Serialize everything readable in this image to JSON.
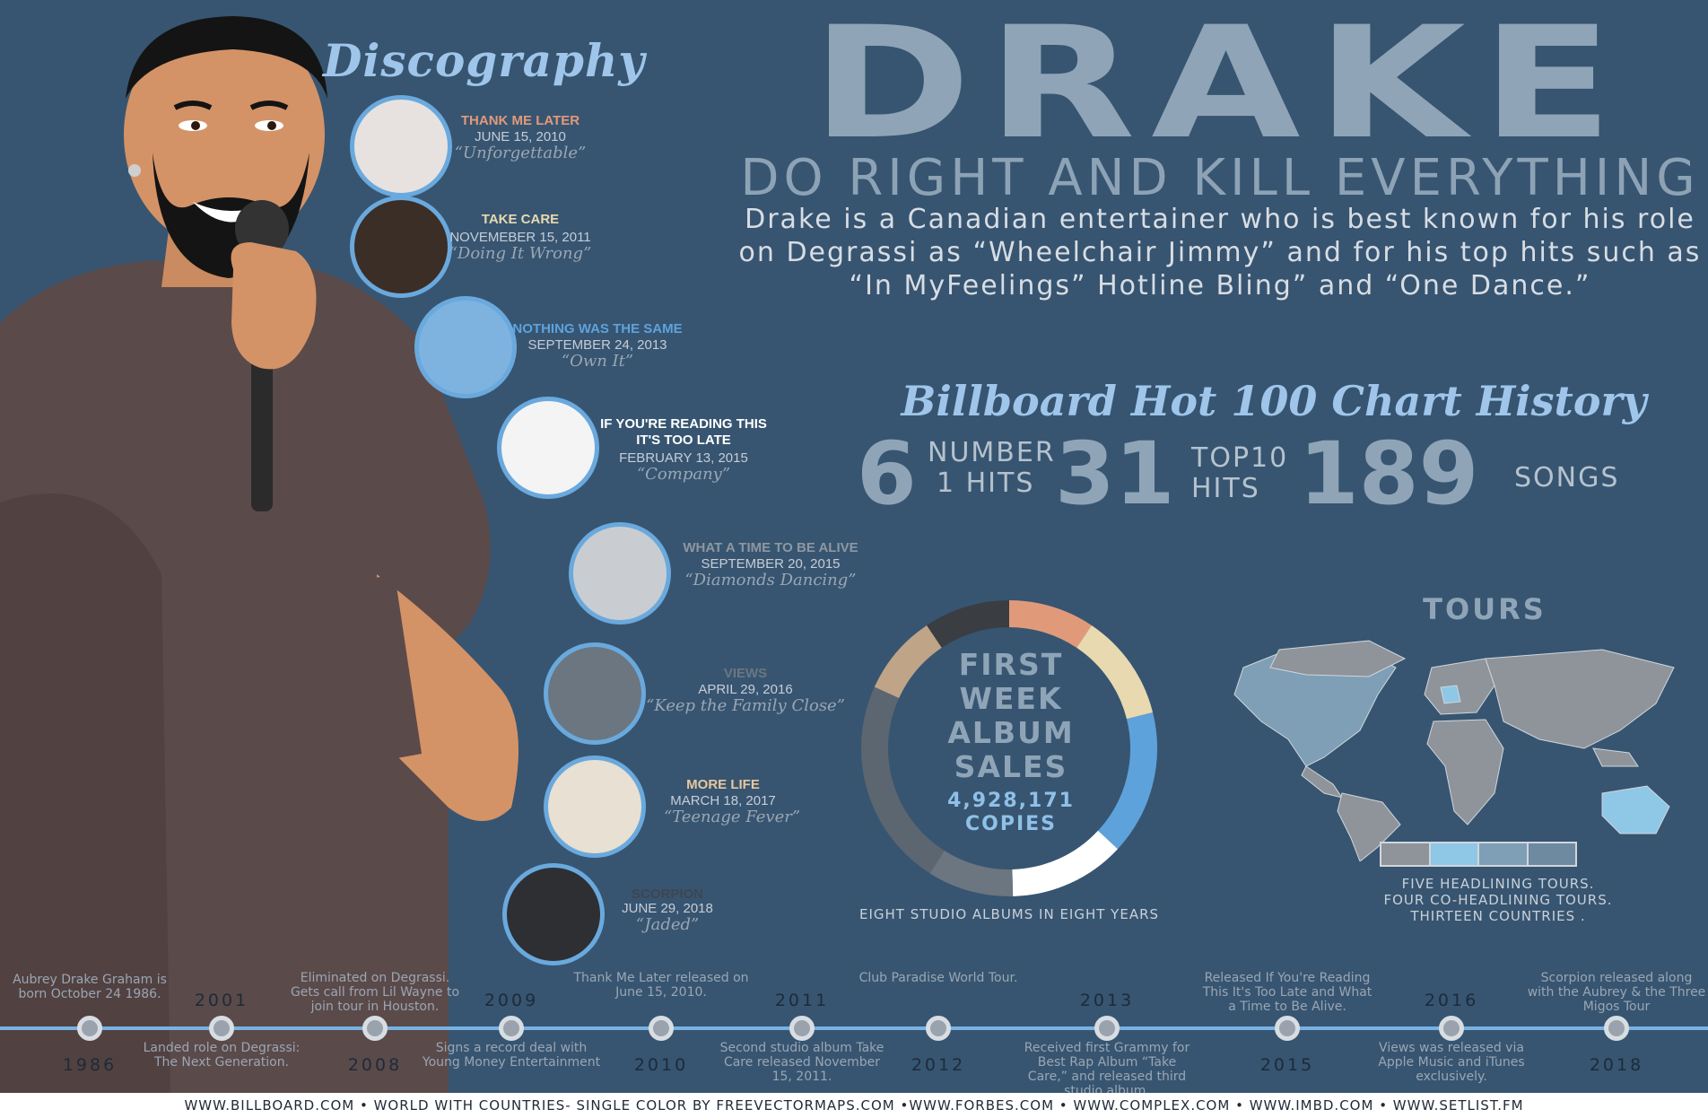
{
  "discography": {
    "title": "Discography",
    "albums": [
      {
        "title": "THANK ME LATER",
        "date": "JUNE 15, 2010",
        "song": "“Unforgettable”",
        "title_color": "#e19a79"
      },
      {
        "title": "TAKE CARE",
        "date": "NOVEMEBER 15, 2011",
        "song": "“Doing It Wrong”",
        "title_color": "#e8d9b0"
      },
      {
        "title": "NOTHING WAS THE SAME",
        "date": "SEPTEMBER 24, 2013",
        "song": "“Own It”",
        "title_color": "#5ea2dc"
      },
      {
        "title": "IF YOU'RE READING THIS IT'S TOO LATE",
        "date": "FEBRUARY 13, 2015",
        "song": "“Company”",
        "title_color": "#ffffff"
      },
      {
        "title": "WHAT A TIME TO BE ALIVE",
        "date": "SEPTEMBER 20, 2015",
        "song": "“Diamonds Dancing”",
        "title_color": "#8e97a1"
      },
      {
        "title": "VIEWS",
        "date": "APRIL 29, 2016",
        "song": "“Keep the Family Close”",
        "title_color": "#6c7680"
      },
      {
        "title": "MORE LIFE",
        "date": "MARCH 18, 2017",
        "song": "“Teenage Fever”",
        "title_color": "#e8c79e"
      },
      {
        "title": "SCORPION",
        "date": "JUNE 29, 2018",
        "song": "“Jaded”",
        "title_color": "#3e4650"
      }
    ]
  },
  "header": {
    "name": "DRAKE",
    "tagline": "DO RIGHT AND KILL EVERYTHING",
    "bio_line1": "Drake is a Canadian entertainer who is best known for his role",
    "bio_line2": "on Degrassi as “Wheelchair Jimmy” and for his top hits such as",
    "bio_line3": "“In MyFeelings” Hotline Bling” and “One Dance.”"
  },
  "billboard": {
    "title": "Billboard Hot 100 Chart History",
    "number_one": {
      "value": "6",
      "label_line1": "NUMBER",
      "label_line2": "1 HITS"
    },
    "top_ten": {
      "value": "31",
      "label_line1": "TOP10",
      "label_line2": "HITS"
    },
    "songs": {
      "value": "189",
      "label": "SONGS"
    }
  },
  "sales": {
    "heading_line1": "FIRST",
    "heading_line2": "WEEK",
    "heading_line3": "ALBUM",
    "heading_line4": "SALES",
    "total": "4,928,171",
    "unit": "COPIES",
    "caption": "EIGHT STUDIO ALBUMS IN EIGHT YEARS",
    "ring_segments": [
      {
        "share": 0.094,
        "color": "#e19a79"
      },
      {
        "share": 0.117,
        "color": "#e8d9b0"
      },
      {
        "share": 0.158,
        "color": "#5ea2dc"
      },
      {
        "share": 0.127,
        "color": "#ffffff"
      },
      {
        "share": 0.094,
        "color": "#6c7680"
      },
      {
        "share": 0.228,
        "color": "#5c6670"
      },
      {
        "share": 0.088,
        "color": "#bfa487"
      },
      {
        "share": 0.094,
        "color": "#3a3d42"
      }
    ]
  },
  "tours": {
    "title": "TOURS",
    "line1": "FIVE HEADLINING TOURS.",
    "line2": "FOUR CO-HEADLINING TOURS.",
    "line3": "THIRTEEN COUNTRIES .",
    "legend_colors": [
      "#8e949a",
      "#8fc7e6",
      "#7e9fb6",
      "#6d8aa0"
    ]
  },
  "timeline": {
    "events": [
      {
        "year": "1986",
        "text": "Aubrey Drake Graham is born October 24 1986."
      },
      {
        "year": "2001",
        "text": "Landed role on Degrassi: The Next Generation."
      },
      {
        "year": "2008",
        "text": "Eliminated on Degrassi. Gets call from Lil Wayne to join tour in Houston."
      },
      {
        "year": "2009",
        "text": "Signs a record deal with Young Money Entertainment"
      },
      {
        "year": "2010",
        "text": "Thank Me Later released on June 15, 2010."
      },
      {
        "year": "2011",
        "text": "Second studio album Take Care released November 15, 2011."
      },
      {
        "year": "2012",
        "text": "Club Paradise World Tour."
      },
      {
        "year": "2013",
        "text": "Received first Grammy for Best Rap Album “Take Care,” and released third studio album."
      },
      {
        "year": "2015",
        "text": "Released If You're Reading This It's Too Late and What a Time to Be Alive."
      },
      {
        "year": "2016",
        "text": "Views was released via Apple Music and iTunes exclusively."
      },
      {
        "year": "2018",
        "text": "Scorpion released along with the Aubrey & the Three Migos Tour"
      }
    ]
  },
  "footer": {
    "sources": "WWW.BILLBOARD.COM • WORLD WITH COUNTRIES- SINGLE COLOR BY FREEVECTORMAPS.COM •WWW.FORBES.COM • WWW.COMPLEX.COM • WWW.IMBD.COM • WWW.SETLIST.FM"
  }
}
